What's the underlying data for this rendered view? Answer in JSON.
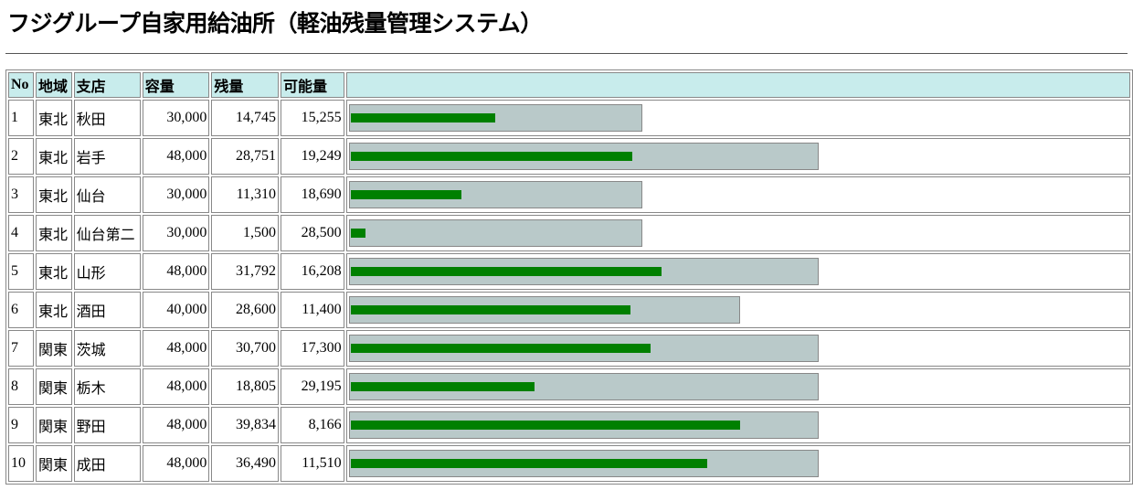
{
  "header": {
    "title": "フジグループ自家用給油所（軽油残量管理システム）"
  },
  "table": {
    "columns": [
      "No",
      "地域",
      "支店",
      "容量",
      "残量",
      "可能量"
    ],
    "rows": [
      [
        "1",
        "東北",
        "秋田",
        {
          "value": 30000,
          "label": "30,000"
        },
        {
          "value": 14745,
          "label": "14,745"
        },
        {
          "value": 15255,
          "label": "15,255"
        }
      ],
      [
        "2",
        "東北",
        "岩手",
        {
          "value": 48000,
          "label": "48,000"
        },
        {
          "value": 28751,
          "label": "28,751"
        },
        {
          "value": 19249,
          "label": "19,249"
        }
      ],
      [
        "3",
        "東北",
        "仙台",
        {
          "value": 30000,
          "label": "30,000"
        },
        {
          "value": 11310,
          "label": "11,310"
        },
        {
          "value": 18690,
          "label": "18,690"
        }
      ],
      [
        "4",
        "東北",
        "仙台第二",
        {
          "value": 30000,
          "label": "30,000"
        },
        {
          "value": 1500,
          "label": "1,500"
        },
        {
          "value": 28500,
          "label": "28,500"
        }
      ],
      [
        "5",
        "東北",
        "山形",
        {
          "value": 48000,
          "label": "48,000"
        },
        {
          "value": 31792,
          "label": "31,792"
        },
        {
          "value": 16208,
          "label": "16,208"
        }
      ],
      [
        "6",
        "東北",
        "酒田",
        {
          "value": 40000,
          "label": "40,000"
        },
        {
          "value": 28600,
          "label": "28,600"
        },
        {
          "value": 11400,
          "label": "11,400"
        }
      ],
      [
        "7",
        "関東",
        "茨城",
        {
          "value": 48000,
          "label": "48,000"
        },
        {
          "value": 30700,
          "label": "30,700"
        },
        {
          "value": 17300,
          "label": "17,300"
        }
      ],
      [
        "8",
        "関東",
        "栃木",
        {
          "value": 48000,
          "label": "48,000"
        },
        {
          "value": 18805,
          "label": "18,805"
        },
        {
          "value": 29195,
          "label": "29,195"
        }
      ],
      [
        "9",
        "関東",
        "野田",
        {
          "value": 48000,
          "label": "48,000"
        },
        {
          "value": 39834,
          "label": "39,834"
        },
        {
          "value": 8166,
          "label": "8,166"
        }
      ],
      [
        "10",
        "関東",
        "成田",
        {
          "value": 48000,
          "label": "48,000"
        },
        {
          "value": 36490,
          "label": "36,490"
        },
        {
          "value": 11510,
          "label": "11,510"
        }
      ]
    ]
  }
}
